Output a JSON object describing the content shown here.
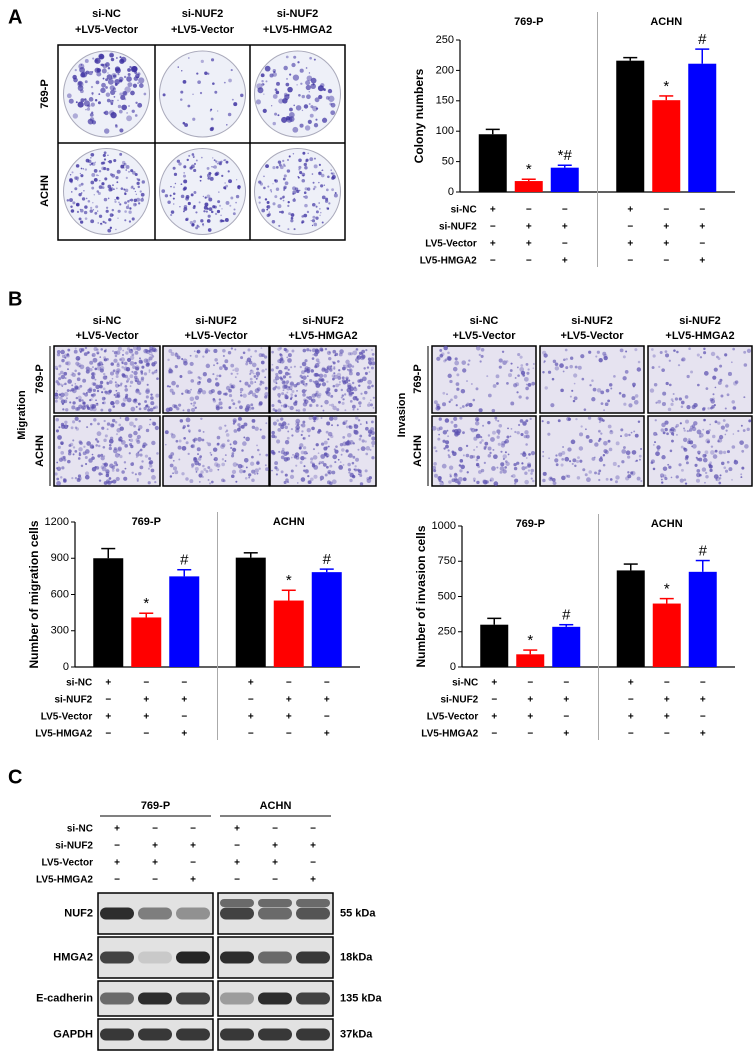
{
  "panel_labels": [
    "A",
    "B",
    "C"
  ],
  "colony": {
    "column_headers": [
      [
        "si-NC",
        "+LV5-Vector"
      ],
      [
        "si-NUF2",
        "+LV5-Vector"
      ],
      [
        "si-NUF2",
        "+LV5-HMGA2"
      ]
    ],
    "row_labels": [
      "769-P",
      "ACHN"
    ]
  },
  "transwell": {
    "column_headers": [
      [
        "si-NC",
        "+LV5-Vector"
      ],
      [
        "si-NUF2",
        "+LV5-Vector"
      ],
      [
        "si-NUF2",
        "+LV5-HMGA2"
      ]
    ],
    "migration": {
      "title": "Migration",
      "row_labels": [
        "769-P",
        "ACHN"
      ]
    },
    "invasion": {
      "title": "Invasion",
      "row_labels": [
        "769-P",
        "ACHN"
      ]
    }
  },
  "chart_data": [
    {
      "type": "bar",
      "ylabel": "Colony numbers",
      "groups": [
        "769-P",
        "ACHN"
      ],
      "values": [
        95,
        18,
        40,
        216,
        151,
        211
      ],
      "errors": [
        8,
        3,
        4,
        5,
        7,
        24
      ],
      "colors": [
        "#000000",
        "#ff0000",
        "#0000ff",
        "#000000",
        "#ff0000",
        "#0000ff"
      ],
      "annotations": [
        null,
        "*",
        "*#",
        null,
        "*",
        "#"
      ],
      "ylim": [
        0,
        250
      ],
      "yticks": [
        0,
        50,
        100,
        150,
        200,
        250
      ],
      "conditions": [
        {
          "label": "si-NC",
          "signs": [
            "+",
            "−",
            "−",
            "+",
            "−",
            "−"
          ]
        },
        {
          "label": "si-NUF2",
          "signs": [
            "−",
            "+",
            "+",
            "−",
            "+",
            "+"
          ]
        },
        {
          "label": "LV5-Vector",
          "signs": [
            "+",
            "+",
            "−",
            "+",
            "+",
            "−"
          ]
        },
        {
          "label": "LV5-HMGA2",
          "signs": [
            "−",
            "−",
            "+",
            "−",
            "−",
            "+"
          ]
        }
      ]
    },
    {
      "type": "bar",
      "ylabel": "Number of migration cells",
      "groups": [
        "769-P",
        "ACHN"
      ],
      "values": [
        900,
        410,
        750,
        905,
        550,
        785
      ],
      "errors": [
        80,
        35,
        55,
        40,
        85,
        25
      ],
      "colors": [
        "#000000",
        "#ff0000",
        "#0000ff",
        "#000000",
        "#ff0000",
        "#0000ff"
      ],
      "annotations": [
        null,
        "*",
        "#",
        null,
        "*",
        "#"
      ],
      "ylim": [
        0,
        1200
      ],
      "yticks": [
        0,
        300,
        600,
        900,
        1200
      ],
      "conditions": [
        {
          "label": "si-NC",
          "signs": [
            "+",
            "−",
            "−",
            "+",
            "−",
            "−"
          ]
        },
        {
          "label": "si-NUF2",
          "signs": [
            "−",
            "+",
            "+",
            "−",
            "+",
            "+"
          ]
        },
        {
          "label": "LV5-Vector",
          "signs": [
            "+",
            "+",
            "−",
            "+",
            "+",
            "−"
          ]
        },
        {
          "label": "LV5-HMGA2",
          "signs": [
            "−",
            "−",
            "+",
            "−",
            "−",
            "+"
          ]
        }
      ]
    },
    {
      "type": "bar",
      "ylabel": "Number of invasion cells",
      "groups": [
        "769-P",
        "ACHN"
      ],
      "values": [
        300,
        90,
        285,
        685,
        450,
        675
      ],
      "errors": [
        45,
        30,
        15,
        45,
        35,
        80
      ],
      "colors": [
        "#000000",
        "#ff0000",
        "#0000ff",
        "#000000",
        "#ff0000",
        "#0000ff"
      ],
      "annotations": [
        null,
        "*",
        "#",
        null,
        "*",
        "#"
      ],
      "ylim": [
        0,
        1000
      ],
      "yticks": [
        0,
        250,
        500,
        750,
        1000
      ],
      "conditions": [
        {
          "label": "si-NC",
          "signs": [
            "+",
            "−",
            "−",
            "+",
            "−",
            "−"
          ]
        },
        {
          "label": "si-NUF2",
          "signs": [
            "−",
            "+",
            "+",
            "−",
            "+",
            "+"
          ]
        },
        {
          "label": "LV5-Vector",
          "signs": [
            "+",
            "+",
            "−",
            "+",
            "+",
            "−"
          ]
        },
        {
          "label": "LV5-HMGA2",
          "signs": [
            "−",
            "−",
            "+",
            "−",
            "−",
            "+"
          ]
        }
      ]
    }
  ],
  "western": {
    "cell_lines": [
      "769-P",
      "ACHN"
    ],
    "conditions": [
      {
        "label": "si-NC",
        "signs": [
          "+",
          "−",
          "−",
          "+",
          "−",
          "−"
        ]
      },
      {
        "label": "si-NUF2",
        "signs": [
          "−",
          "+",
          "+",
          "−",
          "+",
          "+"
        ]
      },
      {
        "label": "LV5-Vector",
        "signs": [
          "+",
          "+",
          "−",
          "+",
          "+",
          "−"
        ]
      },
      {
        "label": "LV5-HMGA2",
        "signs": [
          "−",
          "−",
          "+",
          "−",
          "−",
          "+"
        ]
      }
    ],
    "proteins": [
      {
        "name": "NUF2",
        "size": "55 kDa"
      },
      {
        "name": "HMGA2",
        "size": "18kDa"
      },
      {
        "name": "E-cadherin",
        "size": "135 kDa"
      },
      {
        "name": "GAPDH",
        "size": "37kDa"
      }
    ]
  }
}
